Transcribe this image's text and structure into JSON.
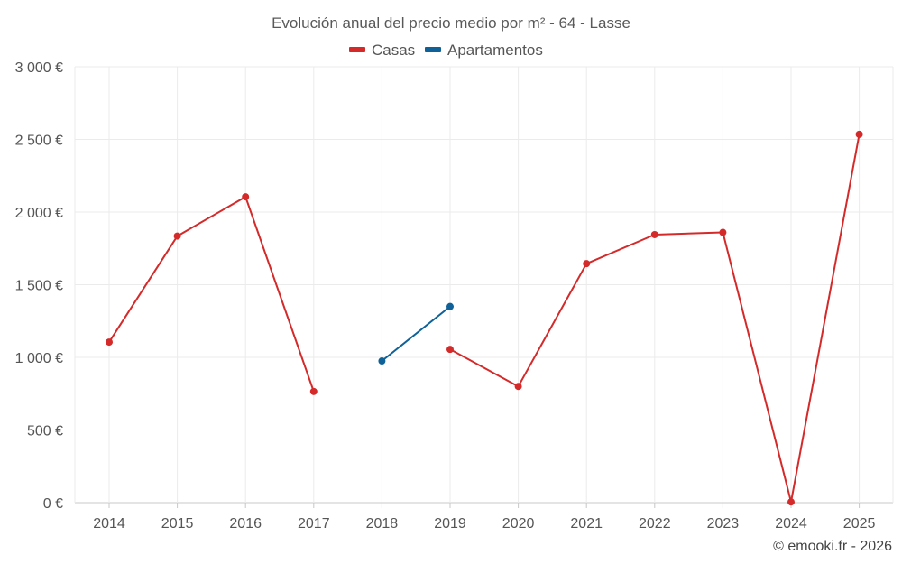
{
  "chart_data": {
    "type": "line",
    "title": "Evolución anual del precio medio por m² - 64 - Lasse",
    "categories": [
      "2014",
      "2015",
      "2016",
      "2017",
      "2018",
      "2019",
      "2020",
      "2021",
      "2022",
      "2023",
      "2024",
      "2025"
    ],
    "series": [
      {
        "name": "Casas",
        "color": "#d42a2a",
        "segments": [
          {
            "x": [
              "2014",
              "2015",
              "2016",
              "2017"
            ],
            "values": [
              1105,
              1835,
              2105,
              765
            ]
          },
          {
            "x": [
              "2019",
              "2020",
              "2021",
              "2022",
              "2023",
              "2024",
              "2025"
            ],
            "values": [
              1055,
              800,
              1645,
              1845,
              1860,
              5,
              2535
            ]
          }
        ]
      },
      {
        "name": "Apartamentos",
        "color": "#0f6198",
        "segments": [
          {
            "x": [
              "2018",
              "2019"
            ],
            "values": [
              975,
              1350
            ]
          }
        ]
      }
    ],
    "ylim": [
      0,
      3000
    ],
    "yticks": [
      0,
      500,
      1000,
      1500,
      2000,
      2500,
      3000
    ],
    "ytick_labels": [
      "0 €",
      "500 €",
      "1 000 €",
      "1 500 €",
      "2 000 €",
      "2 500 €",
      "3 000 €"
    ],
    "xlabel": "",
    "ylabel": "",
    "grid": true,
    "legend": "top-center"
  },
  "credit": "© emooki.fr - 2026"
}
